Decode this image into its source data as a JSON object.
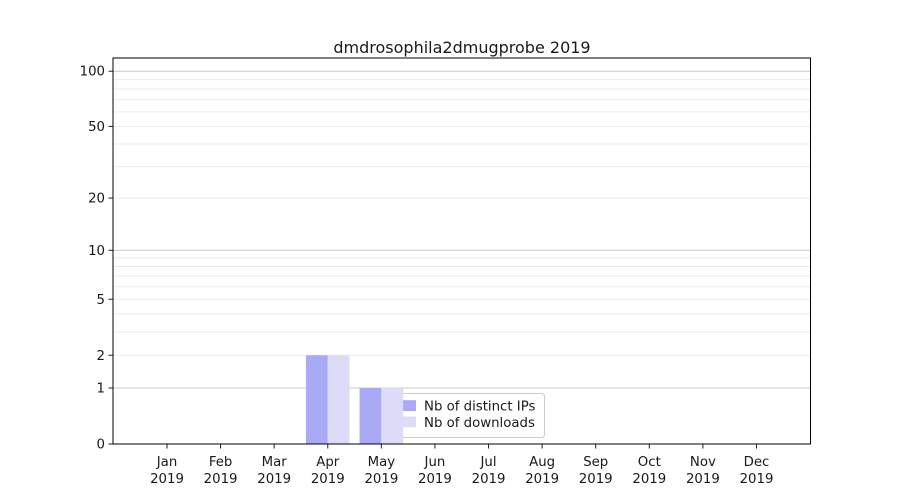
{
  "chart_data": {
    "type": "bar",
    "title": "dmdrosophila2dmugprobe 2019",
    "categories": [
      "Jan",
      "Feb",
      "Mar",
      "Apr",
      "May",
      "Jun",
      "Jul",
      "Aug",
      "Sep",
      "Oct",
      "Nov",
      "Dec"
    ],
    "x_year": "2019",
    "series": [
      {
        "name": "Nb of distinct IPs",
        "color": "#a9a9f5",
        "values": [
          0,
          0,
          0,
          2,
          1,
          0,
          0,
          0,
          0,
          0,
          0,
          0
        ]
      },
      {
        "name": "Nb of downloads",
        "color": "#dcdcf9",
        "values": [
          0,
          0,
          0,
          2,
          1,
          0,
          0,
          0,
          0,
          0,
          0,
          0
        ]
      }
    ],
    "yscale": "log1p",
    "ylim": [
      0,
      120
    ],
    "y_ticks": [
      0,
      1,
      2,
      5,
      10,
      20,
      50,
      100
    ],
    "y_gridlines_major": [
      1,
      10,
      100
    ],
    "y_gridlines_minor": [
      2,
      3,
      4,
      5,
      6,
      7,
      8,
      9,
      20,
      30,
      40,
      50,
      60,
      70,
      80,
      90
    ],
    "grid": true,
    "legend_position": "lower-center",
    "text_color": "#1a1a1a",
    "colors": {
      "grid_major": "#c8c8c8",
      "grid_minor": "#ebebeb",
      "frame": "#000000",
      "legend_border": "#cccccc",
      "legend_bg": "#ffffff"
    }
  }
}
